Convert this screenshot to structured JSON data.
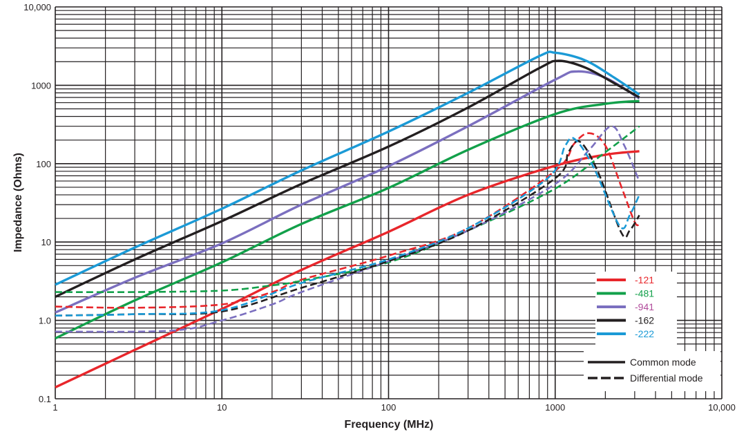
{
  "chart_data": {
    "type": "line",
    "title": "",
    "xlabel": "Frequency (MHz)",
    "ylabel": "Impedance (Ohms)",
    "x_scale": "log",
    "y_scale": "log",
    "xlim": [
      1,
      10000
    ],
    "ylim": [
      0.1,
      10000
    ],
    "grid": true,
    "x_ticks": [
      {
        "v": 1,
        "label": "1"
      },
      {
        "v": 10,
        "label": "10"
      },
      {
        "v": 100,
        "label": "100"
      },
      {
        "v": 1000,
        "label": "1000"
      },
      {
        "v": 10000,
        "label": "10,000"
      }
    ],
    "y_ticks": [
      {
        "v": 0.1,
        "label": "0.1"
      },
      {
        "v": 1,
        "label": "1.0"
      },
      {
        "v": 10,
        "label": "10"
      },
      {
        "v": 100,
        "label": "100"
      },
      {
        "v": 1000,
        "label": "1000"
      },
      {
        "v": 10000,
        "label": "10,000"
      }
    ],
    "legend_placement": "bottom-right",
    "mode_legend": [
      {
        "label": "Common mode",
        "style": "solid"
      },
      {
        "label": "Differential mode",
        "style": "dashed"
      }
    ],
    "series": [
      {
        "name": "-121",
        "mode": "common",
        "color": "#e8262b",
        "label_color": "#e8262b",
        "x": [
          1,
          3,
          10,
          30,
          100,
          300,
          1000,
          2000,
          3200
        ],
        "y": [
          0.14,
          0.42,
          1.4,
          4.4,
          13.5,
          40,
          94,
          130,
          144
        ]
      },
      {
        "name": "-481",
        "mode": "common",
        "color": "#12a04a",
        "label_color": "#12a04a",
        "x": [
          1,
          3,
          10,
          30,
          100,
          300,
          1000,
          2000,
          3200
        ],
        "y": [
          0.59,
          1.8,
          5.5,
          17,
          49,
          150,
          430,
          580,
          630
        ]
      },
      {
        "name": "-941",
        "mode": "common",
        "color": "#7b6fbf",
        "label_color": "#b04a9a",
        "x": [
          1,
          3,
          10,
          30,
          100,
          300,
          1000,
          1350,
          2000,
          3200
        ],
        "y": [
          1.26,
          3.5,
          9.6,
          30,
          93,
          300,
          1180,
          1500,
          1250,
          680
        ]
      },
      {
        "name": "-162",
        "mode": "common",
        "color": "#231f20",
        "label_color": "#231f20",
        "x": [
          1,
          3,
          10,
          30,
          100,
          300,
          800,
          1050,
          1500,
          2200,
          3200
        ],
        "y": [
          2.0,
          6.0,
          18.5,
          55,
          165,
          520,
          1650,
          2050,
          1700,
          1100,
          700
        ]
      },
      {
        "name": "-222",
        "mode": "common",
        "color": "#1b9ad6",
        "label_color": "#1b9ad6",
        "x": [
          1,
          3,
          10,
          30,
          100,
          300,
          800,
          1000,
          1500,
          2200,
          3200
        ],
        "y": [
          2.85,
          8.5,
          26.6,
          82,
          257,
          800,
          2350,
          2600,
          2100,
          1300,
          760
        ]
      },
      {
        "name": "-121",
        "mode": "differential",
        "color": "#e8262b",
        "x": [
          1,
          3,
          10,
          20,
          30,
          100,
          300,
          1000,
          1300,
          1600,
          2000,
          2500,
          3000,
          3200
        ],
        "y": [
          1.5,
          1.45,
          1.6,
          2.3,
          3.3,
          6.7,
          15,
          81,
          180,
          245,
          170,
          50,
          18,
          17
        ]
      },
      {
        "name": "-481",
        "mode": "differential",
        "color": "#12a04a",
        "x": [
          1,
          3,
          10,
          20,
          30,
          100,
          300,
          1000,
          2000,
          3200
        ],
        "y": [
          2.3,
          2.3,
          2.4,
          2.8,
          3.2,
          5.5,
          14,
          48,
          140,
          300
        ]
      },
      {
        "name": "-941",
        "mode": "differential",
        "color": "#7b6fbf",
        "x": [
          1,
          5,
          10,
          20,
          30,
          100,
          300,
          1000,
          1600,
          2170,
          2600,
          3200
        ],
        "y": [
          0.72,
          0.74,
          1.0,
          1.6,
          2.3,
          5.7,
          14,
          55,
          150,
          300,
          170,
          59
        ]
      },
      {
        "name": "-162",
        "mode": "differential",
        "color": "#231f20",
        "x": [
          1,
          3,
          10,
          30,
          100,
          300,
          1000,
          1200,
          1410,
          1800,
          2500,
          2800,
          3200
        ],
        "y": [
          1.15,
          1.2,
          1.3,
          2.6,
          5.7,
          14,
          65,
          140,
          190,
          80,
          13,
          14,
          22
        ]
      },
      {
        "name": "-222",
        "mode": "differential",
        "color": "#1b9ad6",
        "x": [
          1,
          3,
          10,
          30,
          100,
          300,
          900,
          1150,
          1310,
          1700,
          2440,
          2800,
          3200
        ],
        "y": [
          1.15,
          1.2,
          1.35,
          3.0,
          6.0,
          15,
          65,
          170,
          206,
          90,
          16,
          22,
          40
        ]
      }
    ]
  }
}
